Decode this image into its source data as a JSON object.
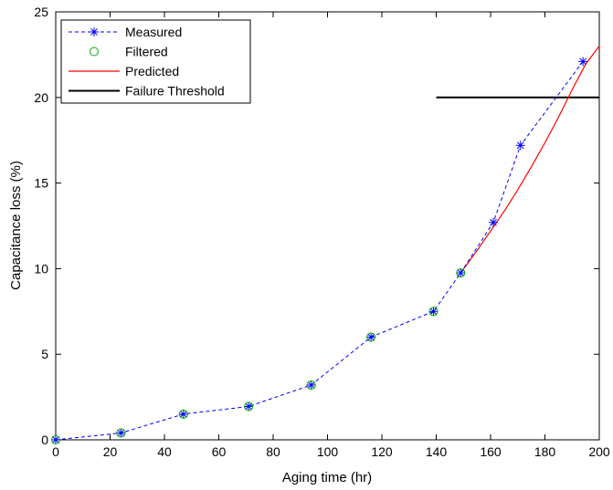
{
  "chart_data": {
    "type": "line",
    "title": "",
    "xlabel": "Aging time (hr)",
    "ylabel": "Capacitance loss (%)",
    "xlim": [
      0,
      200
    ],
    "ylim": [
      0,
      25
    ],
    "xticks": [
      0,
      20,
      40,
      60,
      80,
      100,
      120,
      140,
      160,
      180,
      200
    ],
    "yticks": [
      0,
      5,
      10,
      15,
      20,
      25
    ],
    "grid": false,
    "legend_position": "top-left",
    "series": [
      {
        "name": "Measured",
        "style": "dashed-line-star-markers",
        "color": "#0000ff",
        "x": [
          0,
          24,
          47,
          71,
          94,
          116,
          139,
          149,
          161,
          171,
          194
        ],
        "y": [
          0.0,
          0.4,
          1.5,
          1.95,
          3.2,
          6.0,
          7.5,
          9.75,
          12.7,
          17.2,
          22.1
        ]
      },
      {
        "name": "Filtered",
        "style": "circle-markers",
        "color": "#00aa00",
        "x": [
          0,
          24,
          47,
          71,
          94,
          116,
          139,
          149
        ],
        "y": [
          0.0,
          0.4,
          1.5,
          1.95,
          3.2,
          6.0,
          7.5,
          9.75
        ]
      },
      {
        "name": "Predicted",
        "style": "solid-line",
        "color": "#ff0000",
        "x": [
          149,
          155,
          160,
          165,
          170,
          175,
          180,
          185,
          190,
          195,
          200
        ],
        "y": [
          9.75,
          11.05,
          12.2,
          13.35,
          14.6,
          15.95,
          17.35,
          18.85,
          20.45,
          21.95,
          23.0
        ]
      },
      {
        "name": "Failure Threshold",
        "style": "solid-line",
        "color": "#000000",
        "x": [
          140,
          200
        ],
        "y": [
          20,
          20
        ]
      }
    ]
  }
}
